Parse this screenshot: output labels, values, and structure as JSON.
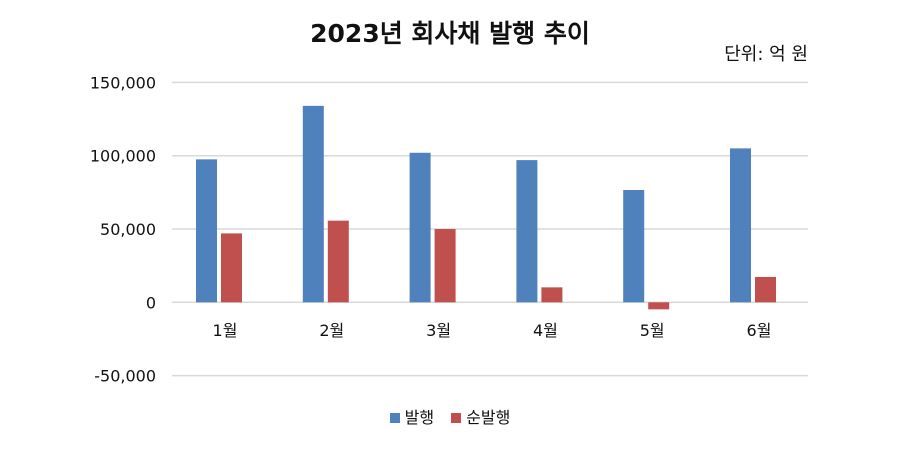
{
  "chart_data": {
    "type": "bar",
    "title": "2023년 회사채 발행 추이",
    "unit_label": "단위: 억 원",
    "categories": [
      "1월",
      "2월",
      "3월",
      "4월",
      "5월",
      "6월"
    ],
    "series": [
      {
        "name": "발행",
        "color": "#4F81BD",
        "values": [
          97500,
          134000,
          102000,
          97000,
          76600,
          105000
        ]
      },
      {
        "name": "순발행",
        "color": "#C0504D",
        "values": [
          47000,
          55700,
          50000,
          10200,
          -4800,
          17300
        ]
      }
    ],
    "ylim": [
      -50000,
      150000
    ],
    "yticks": [
      "-50,000",
      "0",
      "50,000",
      "100,000",
      "150,000"
    ],
    "ytick_values": [
      -50000,
      0,
      50000,
      100000,
      150000
    ],
    "grid": true,
    "legend_position": "bottom"
  }
}
